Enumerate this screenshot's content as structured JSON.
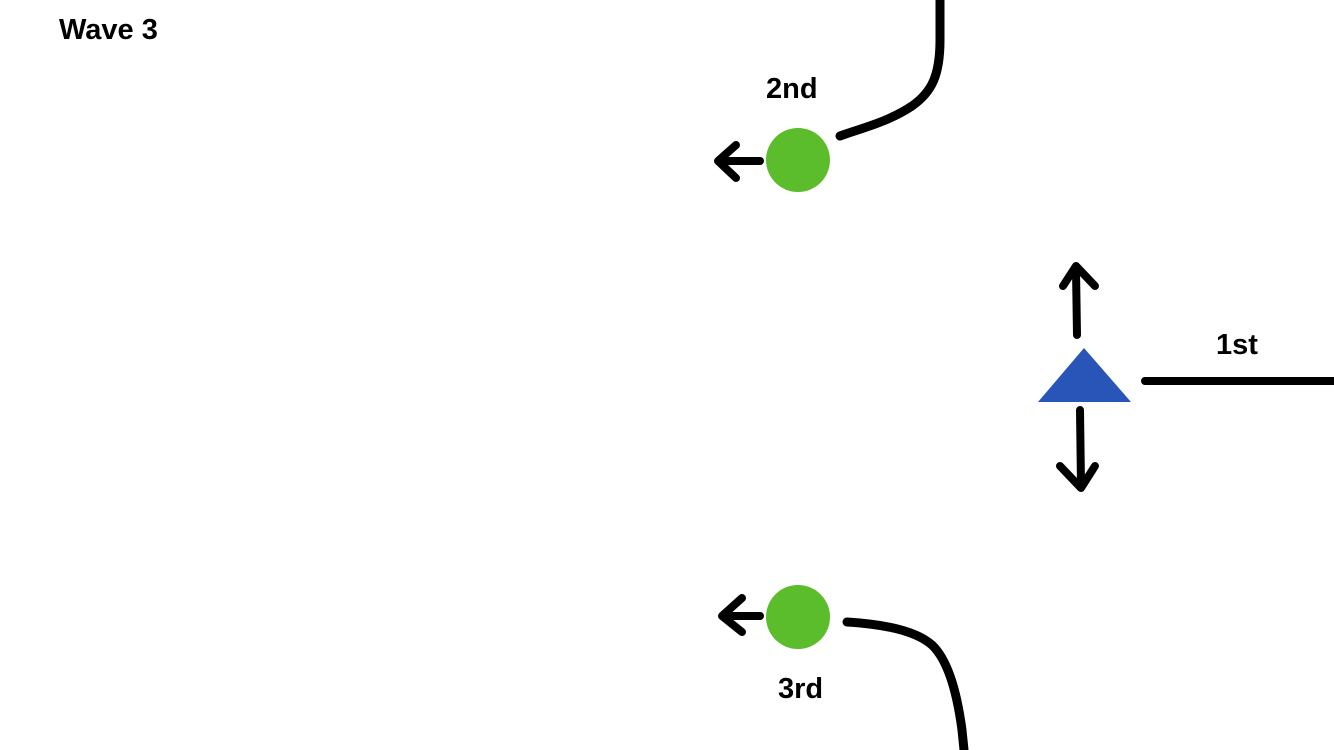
{
  "header": {
    "title": "Wave 3"
  },
  "markers": {
    "second": {
      "label": "2nd",
      "color": "#5bbd2b",
      "shape": "circle",
      "arrow": "left"
    },
    "first": {
      "label": "1st",
      "color": "#2a55b8",
      "shape": "triangle",
      "arrows": [
        "up",
        "down"
      ]
    },
    "third": {
      "label": "3rd",
      "color": "#5bbd2b",
      "shape": "circle",
      "arrow": "left"
    }
  },
  "stroke_color": "#000000"
}
